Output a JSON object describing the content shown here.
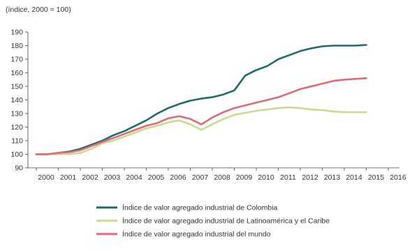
{
  "chart_data": {
    "type": "line",
    "unit_note": "(índice, 2000 = 100)",
    "x": [
      2000,
      2001,
      2002,
      2003,
      2004,
      2005,
      2006,
      2007,
      2008,
      2009,
      2010,
      2011,
      2012,
      2013,
      2014,
      2015,
      2016
    ],
    "x_tick_labels": [
      "2000",
      "2001",
      "2002",
      "2003",
      "2004",
      "2005",
      "2006",
      "2007",
      "2008",
      "2009",
      "2010",
      "2011",
      "2012",
      "2013",
      "2014",
      "2015",
      "2016"
    ],
    "y_tick_labels": [
      "190",
      "180",
      "170",
      "160",
      "150",
      "140",
      "130",
      "120",
      "110",
      "100",
      "90"
    ],
    "ylim": [
      90,
      190
    ],
    "grid": false,
    "legend_position": "bottom",
    "series": [
      {
        "name": "Índice de valor agregado industrial de Colombia",
        "color": "#1f6b6b",
        "points": [
          [
            2000.0,
            100
          ],
          [
            2000.5,
            100
          ],
          [
            2001.0,
            101
          ],
          [
            2001.5,
            102
          ],
          [
            2002.0,
            104
          ],
          [
            2002.5,
            107
          ],
          [
            2003.0,
            110
          ],
          [
            2003.5,
            114
          ],
          [
            2004.0,
            117
          ],
          [
            2004.5,
            121
          ],
          [
            2005.0,
            125
          ],
          [
            2005.5,
            130
          ],
          [
            2006.0,
            134
          ],
          [
            2006.5,
            137
          ],
          [
            2007.0,
            139.5
          ],
          [
            2007.5,
            141
          ],
          [
            2008.0,
            142
          ],
          [
            2008.5,
            144
          ],
          [
            2009.0,
            147
          ],
          [
            2009.5,
            158
          ],
          [
            2010.0,
            162
          ],
          [
            2010.5,
            165
          ],
          [
            2011.0,
            170
          ],
          [
            2011.5,
            173
          ],
          [
            2012.0,
            176
          ],
          [
            2012.5,
            178
          ],
          [
            2013.0,
            179.5
          ],
          [
            2013.5,
            180
          ],
          [
            2014.0,
            180
          ],
          [
            2014.5,
            180
          ],
          [
            2015.0,
            180.5
          ]
        ]
      },
      {
        "name": "Índice de valor agregado industrial de Latinoamérica y el Caribe",
        "color": "#c9db8f",
        "points": [
          [
            2000.0,
            100
          ],
          [
            2000.5,
            100
          ],
          [
            2001.0,
            100
          ],
          [
            2001.5,
            100
          ],
          [
            2002.0,
            101
          ],
          [
            2002.5,
            104
          ],
          [
            2003.0,
            108
          ],
          [
            2003.5,
            110
          ],
          [
            2004.0,
            113
          ],
          [
            2004.5,
            116
          ],
          [
            2005.0,
            119
          ],
          [
            2005.5,
            121
          ],
          [
            2006.0,
            123.5
          ],
          [
            2006.5,
            125
          ],
          [
            2007.0,
            122
          ],
          [
            2007.5,
            118
          ],
          [
            2008.0,
            122
          ],
          [
            2008.5,
            126
          ],
          [
            2009.0,
            129
          ],
          [
            2009.5,
            130.5
          ],
          [
            2010.0,
            132
          ],
          [
            2010.5,
            133
          ],
          [
            2011.0,
            134
          ],
          [
            2011.5,
            134.5
          ],
          [
            2012.0,
            134
          ],
          [
            2012.5,
            133
          ],
          [
            2013.0,
            132.5
          ],
          [
            2013.5,
            131.5
          ],
          [
            2014.0,
            131
          ],
          [
            2014.5,
            131
          ],
          [
            2015.0,
            131
          ]
        ]
      },
      {
        "name": "Índice de valor agregado industrial del mundo",
        "color": "#e06a78",
        "points": [
          [
            2000.0,
            100
          ],
          [
            2000.5,
            100
          ],
          [
            2001.0,
            101
          ],
          [
            2001.5,
            101.5
          ],
          [
            2002.0,
            103
          ],
          [
            2002.5,
            106
          ],
          [
            2003.0,
            109
          ],
          [
            2003.5,
            112
          ],
          [
            2004.0,
            115
          ],
          [
            2004.5,
            118
          ],
          [
            2005.0,
            121
          ],
          [
            2005.5,
            123
          ],
          [
            2006.0,
            126.5
          ],
          [
            2006.5,
            128
          ],
          [
            2007.0,
            126
          ],
          [
            2007.5,
            122
          ],
          [
            2008.0,
            127
          ],
          [
            2008.5,
            131
          ],
          [
            2009.0,
            134
          ],
          [
            2009.5,
            136
          ],
          [
            2010.0,
            138
          ],
          [
            2010.5,
            140
          ],
          [
            2011.0,
            142
          ],
          [
            2011.5,
            145
          ],
          [
            2012.0,
            148
          ],
          [
            2012.5,
            150
          ],
          [
            2013.0,
            152
          ],
          [
            2013.5,
            154
          ],
          [
            2014.0,
            155
          ],
          [
            2014.5,
            155.5
          ],
          [
            2015.0,
            156
          ]
        ]
      }
    ]
  }
}
